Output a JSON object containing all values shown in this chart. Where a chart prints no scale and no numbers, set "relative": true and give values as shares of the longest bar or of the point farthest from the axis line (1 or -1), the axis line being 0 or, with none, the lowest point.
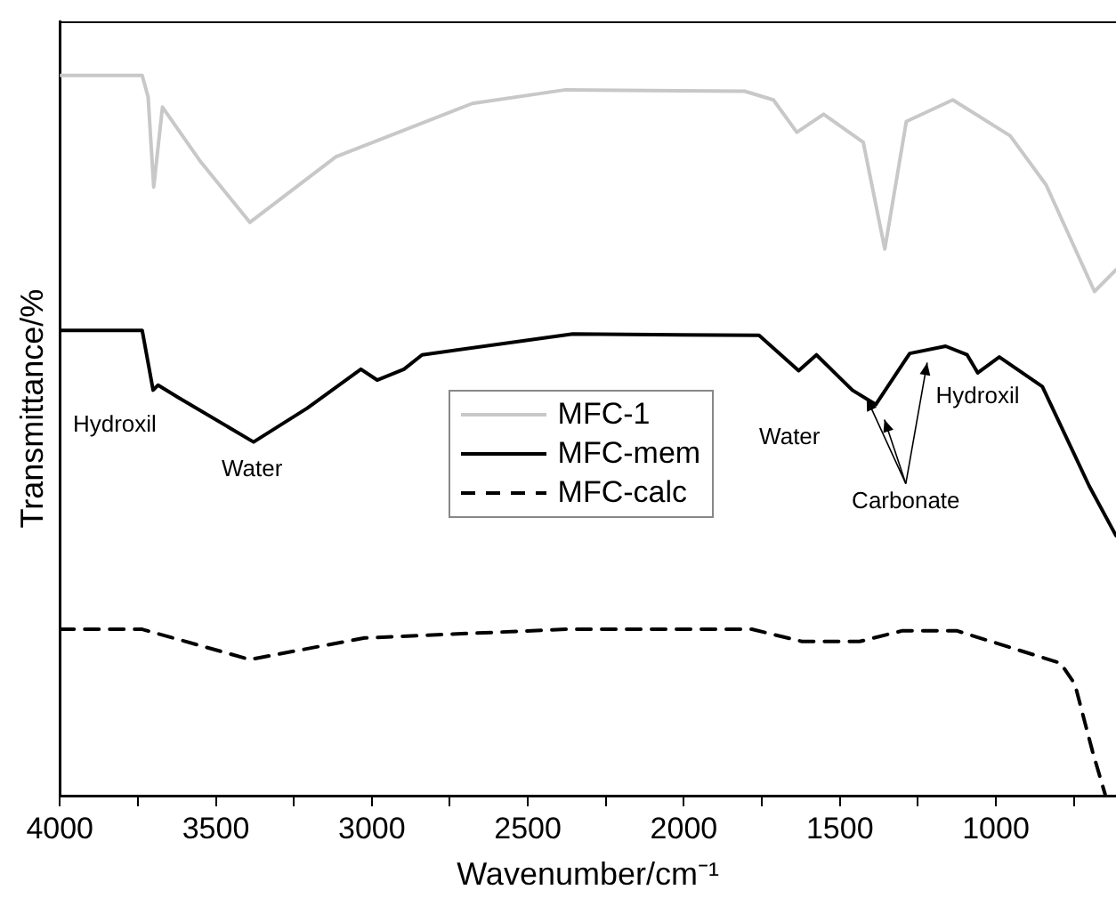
{
  "chart_data": {
    "type": "line",
    "relative": true,
    "xlabel": "Wavenumber/cm⁻¹",
    "ylabel": "Transmittance/%",
    "xlim": [
      4000,
      615
    ],
    "xticks": [
      4000,
      {
        "value": 3750,
        "label": null
      },
      3500,
      {
        "value": 3250,
        "label": null
      },
      3000,
      {
        "value": 2750,
        "label": null
      },
      2500,
      {
        "value": 2250,
        "label": null
      },
      2000,
      {
        "value": 1750,
        "label": null
      },
      1500,
      {
        "value": 1250,
        "label": null
      },
      1000,
      {
        "value": 750,
        "label": null
      }
    ],
    "grid": false,
    "legend": "center",
    "marker": "none",
    "series": [
      {
        "name": "MFC-1",
        "color": "#c8c8c8",
        "line_style": "solid",
        "x": [
          4000,
          3736,
          3717,
          3699,
          3671,
          3552,
          3391,
          3115,
          2678,
          2379,
          1805,
          1713,
          1638,
          1552,
          1425,
          1356,
          1287,
          1138,
          954,
          839,
          684,
          615
        ],
        "values": [
          1.0,
          1.0,
          0.97,
          0.845,
          0.956,
          0.882,
          0.796,
          0.887,
          0.961,
          0.98,
          0.978,
          0.966,
          0.921,
          0.946,
          0.907,
          0.759,
          0.936,
          0.966,
          0.916,
          0.848,
          0.7,
          0.73
        ]
      },
      {
        "name": "MFC-mem",
        "color": "#000000",
        "line_style": "solid",
        "x": [
          4000,
          3736,
          3701,
          3685,
          3621,
          3379,
          3207,
          3035,
          2983,
          2897,
          2839,
          2356,
          1759,
          1632,
          1575,
          1460,
          1385,
          1276,
          1161,
          1092,
          1058,
          989,
          851,
          701,
          615
        ],
        "values": [
          0.646,
          0.646,
          0.563,
          0.57,
          0.553,
          0.491,
          0.538,
          0.592,
          0.577,
          0.592,
          0.612,
          0.641,
          0.639,
          0.59,
          0.612,
          0.563,
          0.543,
          0.614,
          0.624,
          0.612,
          0.587,
          0.609,
          0.568,
          0.43,
          0.361
        ]
      },
      {
        "name": "MFC-calc",
        "color": "#000000",
        "line_style": "dashed",
        "x": [
          4000,
          3736,
          3391,
          3023,
          2379,
          1782,
          1621,
          1437,
          1299,
          1126,
          793,
          747,
          690,
          650
        ],
        "values": [
          0.231,
          0.231,
          0.189,
          0.219,
          0.231,
          0.231,
          0.214,
          0.214,
          0.229,
          0.229,
          0.184,
          0.155,
          0.061,
          0.002
        ]
      }
    ],
    "annotations": [
      "Hydroxil",
      "Water",
      "Water",
      "Carbonate",
      "Hydroxil"
    ]
  }
}
